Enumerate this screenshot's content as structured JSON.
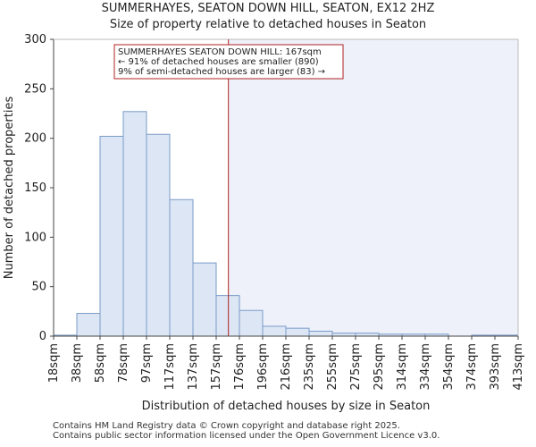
{
  "chart_data": {
    "type": "bar",
    "title": "SUMMERHAYES, SEATON DOWN HILL, SEATON, EX12 2HZ",
    "subtitle": "Size of property relative to detached houses in Seaton",
    "xlabel": "Distribution of detached houses by size in Seaton",
    "ylabel": "Number of detached properties",
    "ylim": [
      0,
      300
    ],
    "yticks": [
      0,
      50,
      100,
      150,
      200,
      250,
      300
    ],
    "xtick_labels": [
      "18sqm",
      "38sqm",
      "58sqm",
      "78sqm",
      "97sqm",
      "117sqm",
      "137sqm",
      "157sqm",
      "176sqm",
      "196sqm",
      "216sqm",
      "235sqm",
      "255sqm",
      "275sqm",
      "295sqm",
      "314sqm",
      "334sqm",
      "354sqm",
      "374sqm",
      "393sqm",
      "413sqm"
    ],
    "values": [
      1,
      23,
      202,
      227,
      204,
      138,
      74,
      41,
      26,
      10,
      8,
      5,
      3,
      3,
      2,
      2,
      2,
      0,
      1,
      1
    ],
    "subject_size_sqm": 167,
    "annotation": [
      "SUMMERHAYES SEATON DOWN HILL: 167sqm",
      "← 91% of detached houses are smaller (890)",
      "9% of semi-detached houses are larger (83) →"
    ],
    "colors": {
      "bar_fill": "#dce6f4",
      "bar_edge": "#7a9cc9",
      "highlight_bg": "#eef1f9",
      "marker_line": "#b02020",
      "annotation_border": "#b02020"
    }
  },
  "footer": {
    "line1": "Contains HM Land Registry data © Crown copyright and database right 2025.",
    "line2": "Contains public sector information licensed under the Open Government Licence v3.0."
  }
}
